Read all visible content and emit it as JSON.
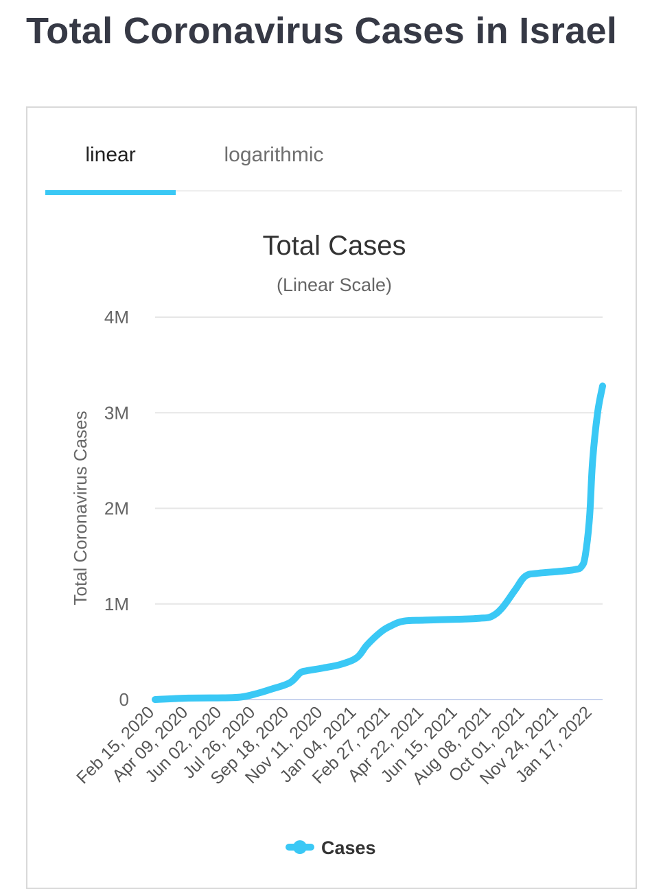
{
  "page": {
    "title": "Total Coronavirus Cases in Israel"
  },
  "tabs": [
    {
      "label": "linear",
      "active": true
    },
    {
      "label": "logarithmic",
      "active": false
    }
  ],
  "colors": {
    "accent": "#3ac8f5",
    "title_text": "#363945",
    "grid": "#e6e6e6"
  },
  "chart_data": {
    "type": "line",
    "title": "Total Cases",
    "subtitle": "(Linear Scale)",
    "ylabel": "Total Coronavirus Cases",
    "xlabel": "",
    "ylim": [
      0,
      4000000
    ],
    "y_ticks": [
      0,
      1000000,
      2000000,
      3000000,
      4000000
    ],
    "y_tick_labels": [
      "0",
      "1M",
      "2M",
      "3M",
      "4M"
    ],
    "x_tick_labels": [
      "Feb 15, 2020",
      "Apr 09, 2020",
      "Jun 02, 2020",
      "Jul 26, 2020",
      "Sep 18, 2020",
      "Nov 11, 2020",
      "Jan 04, 2021",
      "Feb 27, 2021",
      "Apr 22, 2021",
      "Jun 15, 2021",
      "Aug 08, 2021",
      "Oct 01, 2021",
      "Nov 24, 2021",
      "Jan 17, 2022"
    ],
    "grid": true,
    "legend_position": "bottom",
    "series": [
      {
        "name": "Cases",
        "color": "#3ac8f5",
        "x": [
          "Feb 15, 2020",
          "Apr 09, 2020",
          "Jun 02, 2020",
          "Jul 01, 2020",
          "Jul 26, 2020",
          "Aug 20, 2020",
          "Sep 18, 2020",
          "Oct 05, 2020",
          "Oct 15, 2020",
          "Nov 11, 2020",
          "Dec 10, 2020",
          "Jan 04, 2021",
          "Jan 20, 2021",
          "Feb 10, 2021",
          "Feb 27, 2021",
          "Mar 20, 2021",
          "Apr 22, 2021",
          "Jun 15, 2021",
          "Jul 20, 2021",
          "Aug 08, 2021",
          "Aug 25, 2021",
          "Sep 15, 2021",
          "Oct 01, 2021",
          "Oct 20, 2021",
          "Nov 24, 2021",
          "Dec 20, 2021",
          "Dec 30, 2021",
          "Jan 05, 2022",
          "Jan 12, 2022",
          "Jan 17, 2022",
          "Jan 25, 2022",
          "Feb 02, 2022"
        ],
        "values": [
          0,
          15000,
          18000,
          25000,
          60000,
          110000,
          175000,
          280000,
          300000,
          330000,
          370000,
          440000,
          570000,
          700000,
          770000,
          820000,
          830000,
          840000,
          850000,
          870000,
          960000,
          1150000,
          1290000,
          1320000,
          1340000,
          1360000,
          1390000,
          1500000,
          1900000,
          2500000,
          3000000,
          3280000
        ]
      }
    ]
  }
}
